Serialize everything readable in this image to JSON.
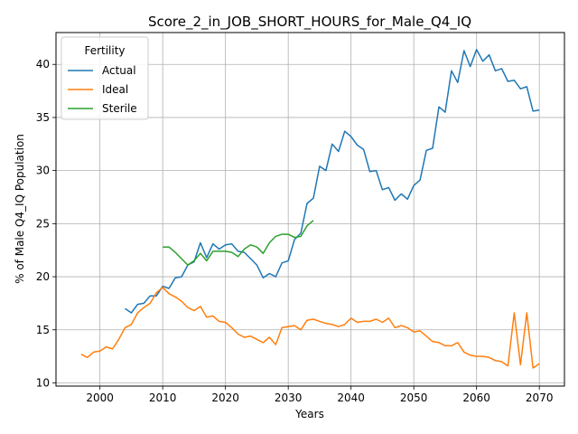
{
  "chart_data": {
    "type": "line",
    "title": "Score_2_in_JOB_SHORT_HOURS_for_Male_Q4_IQ",
    "xlabel": "Years",
    "ylabel": "% of Male Q4_IQ Population",
    "xlim": [
      1993,
      2074
    ],
    "ylim": [
      9.7,
      43.0
    ],
    "xticks": [
      2000,
      2010,
      2020,
      2030,
      2040,
      2050,
      2060,
      2070
    ],
    "yticks": [
      10,
      15,
      20,
      25,
      30,
      35,
      40
    ],
    "grid": true,
    "legend": {
      "title": "Fertility",
      "placement": "top-left"
    },
    "series": [
      {
        "name": "Actual",
        "color": "#1f77b4",
        "x": [
          2004,
          2005,
          2006,
          2007,
          2008,
          2009,
          2010,
          2011,
          2012,
          2013,
          2014,
          2015,
          2016,
          2017,
          2018,
          2019,
          2020,
          2021,
          2022,
          2023,
          2024,
          2025,
          2026,
          2027,
          2028,
          2029,
          2030,
          2031,
          2032,
          2033,
          2034,
          2035,
          2036,
          2037,
          2038,
          2039,
          2040,
          2041,
          2042,
          2043,
          2044,
          2045,
          2046,
          2047,
          2048,
          2049,
          2050,
          2051,
          2052,
          2053,
          2054,
          2055,
          2056,
          2057,
          2058,
          2059,
          2060,
          2061,
          2062,
          2063,
          2064,
          2065,
          2066,
          2067,
          2068,
          2069,
          2070
        ],
        "values": [
          17.0,
          16.6,
          17.4,
          17.5,
          18.2,
          18.2,
          19.1,
          18.9,
          19.9,
          20.0,
          21.1,
          21.4,
          23.2,
          21.8,
          23.1,
          22.6,
          23.0,
          23.1,
          22.4,
          22.3,
          21.7,
          21.1,
          19.9,
          20.3,
          20.0,
          21.3,
          21.5,
          23.5,
          24.1,
          26.9,
          27.4,
          30.4,
          30.0,
          32.5,
          31.8,
          33.7,
          33.2,
          32.4,
          32.0,
          29.9,
          30.0,
          28.2,
          28.4,
          27.2,
          27.8,
          27.3,
          28.6,
          29.1,
          31.9,
          32.1,
          36.0,
          35.5,
          39.4,
          38.3,
          41.3,
          39.8,
          41.4,
          40.3,
          40.9,
          39.4,
          39.6,
          38.4,
          38.5,
          37.7,
          37.9,
          35.6,
          35.7
        ]
      },
      {
        "name": "Ideal",
        "color": "#ff7f0e",
        "x": [
          1997,
          1998,
          1999,
          2000,
          2001,
          2002,
          2003,
          2004,
          2005,
          2006,
          2007,
          2008,
          2009,
          2010,
          2011,
          2012,
          2013,
          2014,
          2015,
          2016,
          2017,
          2018,
          2019,
          2020,
          2021,
          2022,
          2023,
          2024,
          2025,
          2026,
          2027,
          2028,
          2029,
          2030,
          2031,
          2032,
          2033,
          2034,
          2035,
          2036,
          2037,
          2038,
          2039,
          2040,
          2041,
          2042,
          2043,
          2044,
          2045,
          2046,
          2047,
          2048,
          2049,
          2050,
          2051,
          2052,
          2053,
          2054,
          2055,
          2056,
          2057,
          2058,
          2059,
          2060,
          2061,
          2062,
          2063,
          2064,
          2065,
          2066,
          2067,
          2068,
          2069,
          2070
        ],
        "values": [
          12.7,
          12.4,
          12.9,
          13.0,
          13.4,
          13.2,
          14.1,
          15.2,
          15.5,
          16.6,
          17.1,
          17.5,
          18.5,
          19.0,
          18.4,
          18.1,
          17.7,
          17.1,
          16.8,
          17.2,
          16.2,
          16.3,
          15.8,
          15.7,
          15.2,
          14.6,
          14.3,
          14.4,
          14.1,
          13.8,
          14.3,
          13.6,
          15.2,
          15.3,
          15.4,
          15.0,
          15.9,
          16.0,
          15.8,
          15.6,
          15.5,
          15.3,
          15.5,
          16.1,
          15.7,
          15.8,
          15.8,
          16.0,
          15.7,
          16.1,
          15.2,
          15.4,
          15.2,
          14.8,
          14.9,
          14.4,
          13.9,
          13.8,
          13.5,
          13.5,
          13.8,
          12.9,
          12.6,
          12.5,
          12.5,
          12.4,
          12.1,
          12.0,
          11.6,
          16.6,
          11.7,
          16.6,
          11.4,
          11.8
        ]
      },
      {
        "name": "Sterile",
        "color": "#2ca02c",
        "x": [
          2010,
          2011,
          2012,
          2013,
          2014,
          2015,
          2016,
          2017,
          2018,
          2019,
          2020,
          2021,
          2022,
          2023,
          2024,
          2025,
          2026,
          2027,
          2028,
          2029,
          2030,
          2031,
          2032,
          2033,
          2034
        ],
        "values": [
          22.8,
          22.8,
          22.3,
          21.7,
          21.1,
          21.5,
          22.2,
          21.5,
          22.4,
          22.4,
          22.4,
          22.3,
          21.9,
          22.6,
          23.0,
          22.8,
          22.2,
          23.2,
          23.8,
          24.0,
          24.0,
          23.7,
          23.8,
          24.8,
          25.3
        ]
      }
    ]
  }
}
